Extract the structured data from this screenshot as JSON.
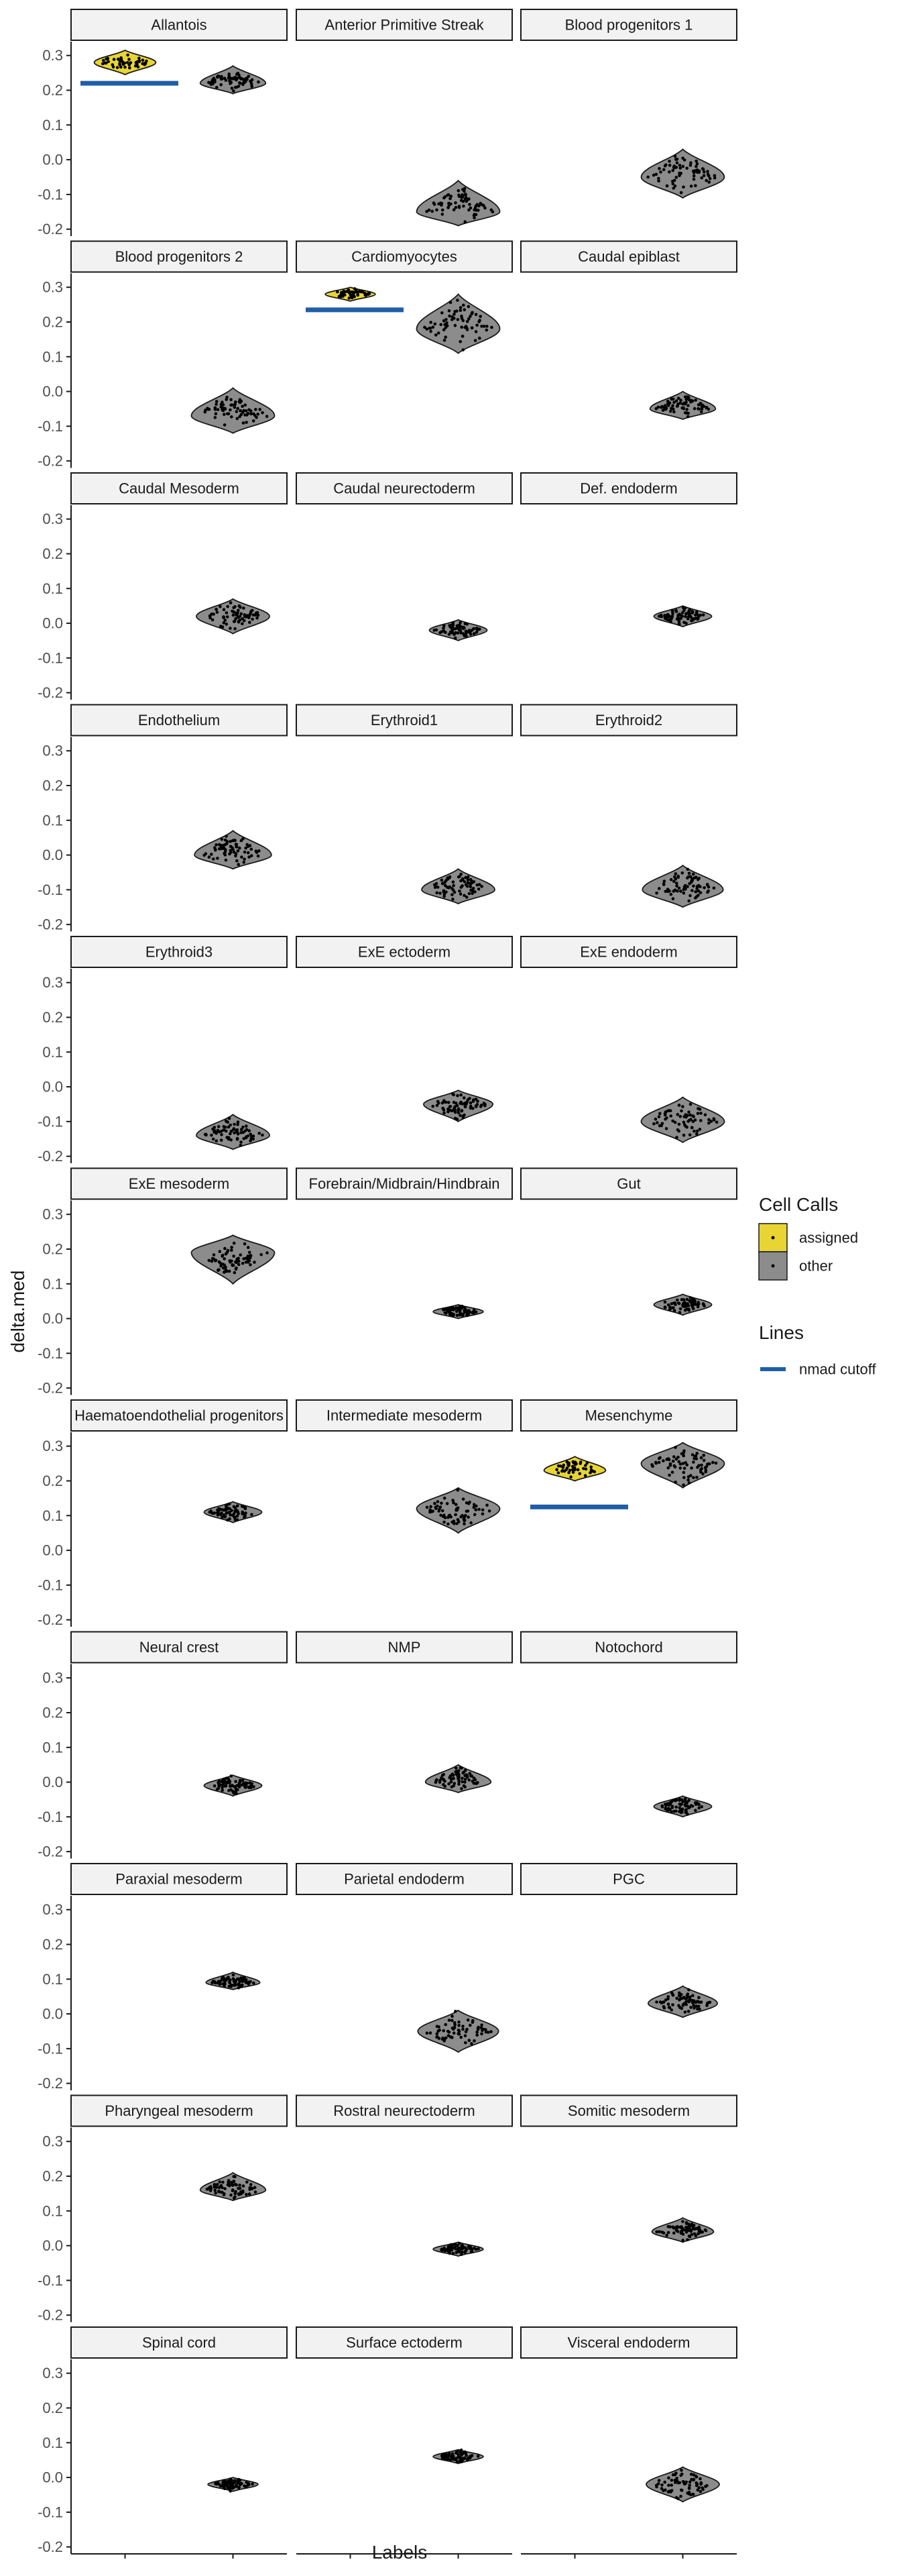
{
  "chart_data": {
    "type": "violin",
    "facet_layout": "wrap, 3 columns",
    "xlabel": "Labels",
    "ylabel": "delta.med",
    "ylim": [
      -0.22,
      0.34
    ],
    "yticks": [
      -0.2,
      -0.1,
      0.0,
      0.1,
      0.2,
      0.3
    ],
    "ytick_labels": [
      "-0.2",
      "-0.1",
      "0.0",
      "0.1",
      "0.2",
      "0.3"
    ],
    "x_positions": [
      "assigned",
      "other"
    ],
    "legend": {
      "position": "right",
      "fill_title": "Cell Calls",
      "fill_entries": [
        {
          "label": "assigned",
          "color": "#e8d534"
        },
        {
          "label": "other",
          "color": "#8c8c8c"
        }
      ],
      "line_title": "Lines",
      "line_entries": [
        {
          "label": "nmad cutoff",
          "color": "#1f5ea8"
        }
      ]
    },
    "colors": {
      "assigned": "#e8d534",
      "other": "#8c8c8c",
      "cutoff": "#1f5ea8",
      "strip_fill": "#f2f2f2"
    },
    "panels": [
      {
        "label": "Allantois",
        "assigned": {
          "center": 0.28,
          "min": 0.245,
          "max": 0.315
        },
        "other": {
          "center": 0.22,
          "min": 0.19,
          "max": 0.27
        },
        "cutoff": 0.22
      },
      {
        "label": "Anterior Primitive Streak",
        "other": {
          "center": -0.15,
          "min": -0.19,
          "max": -0.06
        }
      },
      {
        "label": "Blood progenitors 1",
        "other": {
          "center": -0.05,
          "min": -0.11,
          "max": 0.03
        }
      },
      {
        "label": "Blood progenitors 2",
        "other": {
          "center": -0.07,
          "min": -0.12,
          "max": 0.01
        }
      },
      {
        "label": "Cardiomyocytes",
        "assigned": {
          "center": 0.28,
          "min": 0.26,
          "max": 0.3
        },
        "other": {
          "center": 0.18,
          "min": 0.11,
          "max": 0.28
        },
        "cutoff": 0.235
      },
      {
        "label": "Caudal epiblast",
        "other": {
          "center": -0.05,
          "min": -0.08,
          "max": 0.0
        }
      },
      {
        "label": "Caudal Mesoderm",
        "other": {
          "center": 0.02,
          "min": -0.03,
          "max": 0.07
        }
      },
      {
        "label": "Caudal neurectoderm",
        "other": {
          "center": -0.02,
          "min": -0.05,
          "max": 0.01
        }
      },
      {
        "label": "Def. endoderm",
        "other": {
          "center": 0.02,
          "min": -0.01,
          "max": 0.05
        }
      },
      {
        "label": "Endothelium",
        "other": {
          "center": 0.0,
          "min": -0.04,
          "max": 0.07
        }
      },
      {
        "label": "Erythroid1",
        "other": {
          "center": -0.1,
          "min": -0.14,
          "max": -0.04
        }
      },
      {
        "label": "Erythroid2",
        "other": {
          "center": -0.1,
          "min": -0.15,
          "max": -0.03
        }
      },
      {
        "label": "Erythroid3",
        "other": {
          "center": -0.14,
          "min": -0.18,
          "max": -0.08
        }
      },
      {
        "label": "ExE ectoderm",
        "other": {
          "center": -0.05,
          "min": -0.1,
          "max": -0.01
        }
      },
      {
        "label": "ExE endoderm",
        "other": {
          "center": -0.1,
          "min": -0.16,
          "max": -0.03
        }
      },
      {
        "label": "ExE mesoderm",
        "other": {
          "center": 0.19,
          "min": 0.1,
          "max": 0.24
        }
      },
      {
        "label": "Forebrain/Midbrain/Hindbrain",
        "other": {
          "center": 0.02,
          "min": 0.0,
          "max": 0.04
        }
      },
      {
        "label": "Gut",
        "other": {
          "center": 0.04,
          "min": 0.01,
          "max": 0.07
        }
      },
      {
        "label": "Haematoendothelial progenitors",
        "other": {
          "center": 0.11,
          "min": 0.08,
          "max": 0.14
        }
      },
      {
        "label": "Intermediate mesoderm",
        "other": {
          "center": 0.12,
          "min": 0.05,
          "max": 0.18
        }
      },
      {
        "label": "Mesenchyme",
        "assigned": {
          "center": 0.23,
          "min": 0.2,
          "max": 0.27
        },
        "other": {
          "center": 0.25,
          "min": 0.18,
          "max": 0.31
        },
        "cutoff": 0.125
      },
      {
        "label": "Neural crest",
        "other": {
          "center": -0.01,
          "min": -0.04,
          "max": 0.02
        }
      },
      {
        "label": "NMP",
        "other": {
          "center": 0.0,
          "min": -0.03,
          "max": 0.05
        }
      },
      {
        "label": "Notochord",
        "other": {
          "center": -0.07,
          "min": -0.1,
          "max": -0.04
        }
      },
      {
        "label": "Paraxial mesoderm",
        "other": {
          "center": 0.09,
          "min": 0.07,
          "max": 0.12
        }
      },
      {
        "label": "Parietal endoderm",
        "other": {
          "center": -0.05,
          "min": -0.11,
          "max": 0.01
        }
      },
      {
        "label": "PGC",
        "other": {
          "center": 0.03,
          "min": -0.01,
          "max": 0.08
        }
      },
      {
        "label": "Pharyngeal mesoderm",
        "other": {
          "center": 0.16,
          "min": 0.13,
          "max": 0.21
        }
      },
      {
        "label": "Rostral neurectoderm",
        "other": {
          "center": -0.01,
          "min": -0.03,
          "max": 0.01
        }
      },
      {
        "label": "Somitic mesoderm",
        "other": {
          "center": 0.04,
          "min": 0.01,
          "max": 0.08
        }
      },
      {
        "label": "Spinal cord",
        "other": {
          "center": -0.02,
          "min": -0.04,
          "max": 0.0
        }
      },
      {
        "label": "Surface ectoderm",
        "other": {
          "center": 0.06,
          "min": 0.04,
          "max": 0.08
        }
      },
      {
        "label": "Visceral endoderm",
        "other": {
          "center": -0.02,
          "min": -0.07,
          "max": 0.03
        }
      }
    ]
  }
}
